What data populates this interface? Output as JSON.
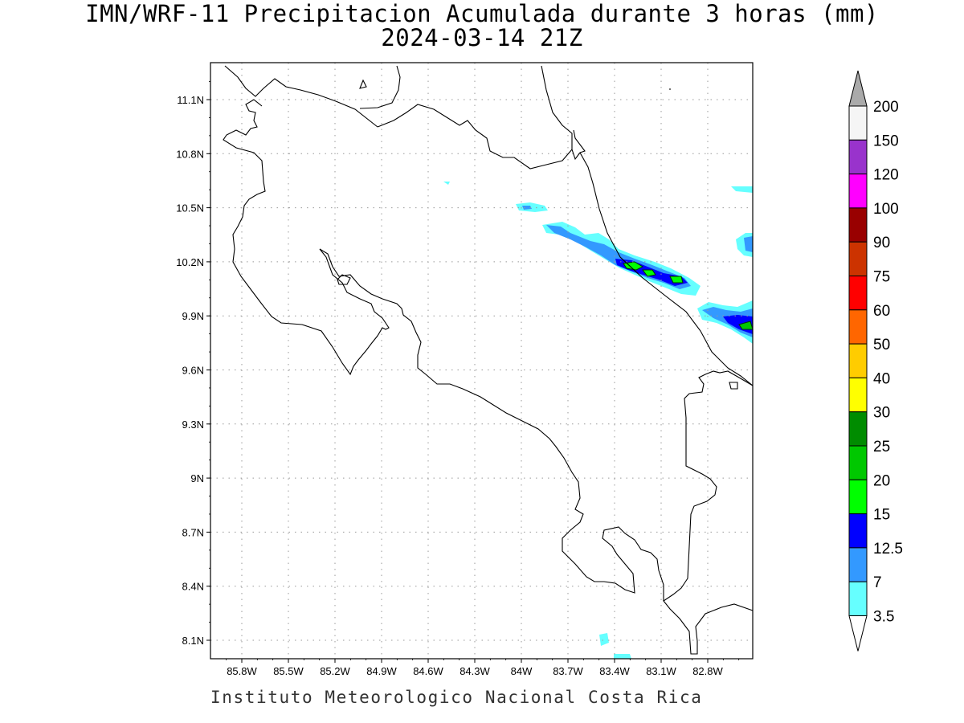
{
  "title": {
    "line1": "IMN/WRF-11 Precipitacion Acumulada durante 3 horas (mm)",
    "line2": "2024-03-14 21Z"
  },
  "footer": "Instituto Meteorologico Nacional Costa Rica",
  "map": {
    "lon_range": [
      -85.97,
      -82.55
    ],
    "lat_range": [
      8.0,
      11.3
    ],
    "lat_ticks": [
      {
        "value": 11.1,
        "label": "11.1N"
      },
      {
        "value": 10.8,
        "label": "10.8N"
      },
      {
        "value": 10.5,
        "label": "10.5N"
      },
      {
        "value": 10.2,
        "label": "10.2N"
      },
      {
        "value": 9.9,
        "label": "9.9N"
      },
      {
        "value": 9.6,
        "label": "9.6N"
      },
      {
        "value": 9.3,
        "label": "9.3N"
      },
      {
        "value": 9.0,
        "label": "9N"
      },
      {
        "value": 8.7,
        "label": "8.7N"
      },
      {
        "value": 8.4,
        "label": "8.4N"
      },
      {
        "value": 8.1,
        "label": "8.1N"
      }
    ],
    "lon_ticks": [
      {
        "value": -85.8,
        "label": "85.8W"
      },
      {
        "value": -85.5,
        "label": "85.5W"
      },
      {
        "value": -85.2,
        "label": "85.2W"
      },
      {
        "value": -84.9,
        "label": "84.9W"
      },
      {
        "value": -84.6,
        "label": "84.6W"
      },
      {
        "value": -84.3,
        "label": "84.3W"
      },
      {
        "value": -84.0,
        "label": "84W"
      },
      {
        "value": -83.7,
        "label": "83.7W"
      },
      {
        "value": -83.4,
        "label": "83.4W"
      },
      {
        "value": -83.1,
        "label": "83.1W"
      },
      {
        "value": -82.8,
        "label": "82.8W"
      }
    ],
    "grid": true,
    "coast_color": "#000000",
    "grid_color": "#999999"
  },
  "legend": {
    "levels": [
      {
        "label": "3.5",
        "color": "#66ffff"
      },
      {
        "label": "7",
        "color": "#3399ff"
      },
      {
        "label": "12.5",
        "color": "#0000ff"
      },
      {
        "label": "15",
        "color": "#00ff00"
      },
      {
        "label": "20",
        "color": "#00c800"
      },
      {
        "label": "25",
        "color": "#008c00"
      },
      {
        "label": "30",
        "color": "#ffff00"
      },
      {
        "label": "40",
        "color": "#ffcc00"
      },
      {
        "label": "50",
        "color": "#ff6600"
      },
      {
        "label": "60",
        "color": "#ff0000"
      },
      {
        "label": "75",
        "color": "#cc3300"
      },
      {
        "label": "90",
        "color": "#990000"
      },
      {
        "label": "100",
        "color": "#ff00ff"
      },
      {
        "label": "120",
        "color": "#9933cc"
      },
      {
        "label": "150",
        "color": "#f5f5f5"
      },
      {
        "label": "200",
        "color": ""
      }
    ],
    "top_arrow_color": "#aaaaaa",
    "bottom_arrow_color": "#ffffff"
  },
  "precip_features": [
    {
      "name": "band-caribbean-north",
      "lon": -83.35,
      "lat": 10.18,
      "level": "7"
    },
    {
      "name": "band-caribbean-core",
      "lon": -83.15,
      "lat": 10.12,
      "level": "20"
    },
    {
      "name": "band-caribbean-south",
      "lon": -82.7,
      "lat": 9.87,
      "level": "15"
    },
    {
      "name": "cell-east-edge",
      "lon": -82.6,
      "lat": 10.33,
      "level": "7"
    },
    {
      "name": "cell-northwest",
      "lon": -83.95,
      "lat": 10.51,
      "level": "7"
    },
    {
      "name": "cell-south",
      "lon": -83.45,
      "lat": 8.1,
      "level": "3.5"
    }
  ]
}
